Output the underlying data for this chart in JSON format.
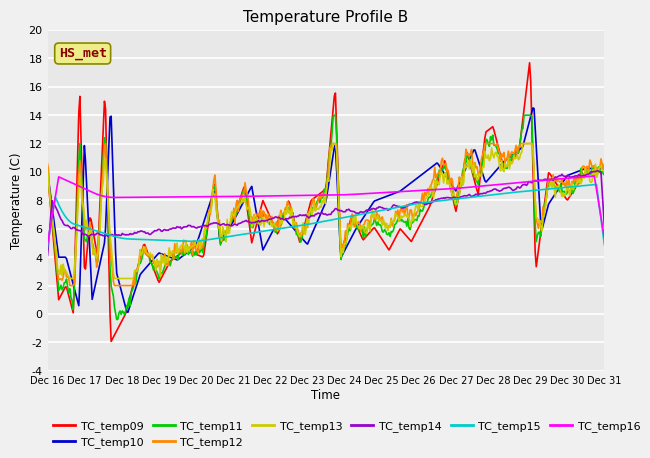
{
  "title": "Temperature Profile B",
  "xlabel": "Time",
  "ylabel": "Temperature (C)",
  "ylim": [
    -4,
    20
  ],
  "series_names": [
    "TC_temp09",
    "TC_temp10",
    "TC_temp11",
    "TC_temp12",
    "TC_temp13",
    "TC_temp14",
    "TC_temp15",
    "TC_temp16"
  ],
  "series_colors": [
    "#ff0000",
    "#0000cc",
    "#00cc00",
    "#ff8800",
    "#cccc00",
    "#9900cc",
    "#00cccc",
    "#ff00ff"
  ],
  "annotation_label": "HS_met",
  "annotation_color": "#880000",
  "annotation_bg": "#eeee88",
  "background_color": "#e8e8e8",
  "plot_bg": "#e8e8e8",
  "n_points": 500,
  "title_fontsize": 11,
  "legend_fontsize": 8,
  "xtick_labels": [
    "Dec 16",
    "Dec 17",
    "Dec 18",
    "Dec 19",
    "Dec 20",
    "Dec 21",
    "Dec 22",
    "Dec 23",
    "Dec 24",
    "Dec 25",
    "Dec 26",
    "Dec 27",
    "Dec 28",
    "Dec 29",
    "Dec 30",
    "Dec 31"
  ],
  "ytick_values": [
    -4,
    -2,
    0,
    2,
    4,
    6,
    8,
    10,
    12,
    14,
    16,
    18,
    20
  ]
}
